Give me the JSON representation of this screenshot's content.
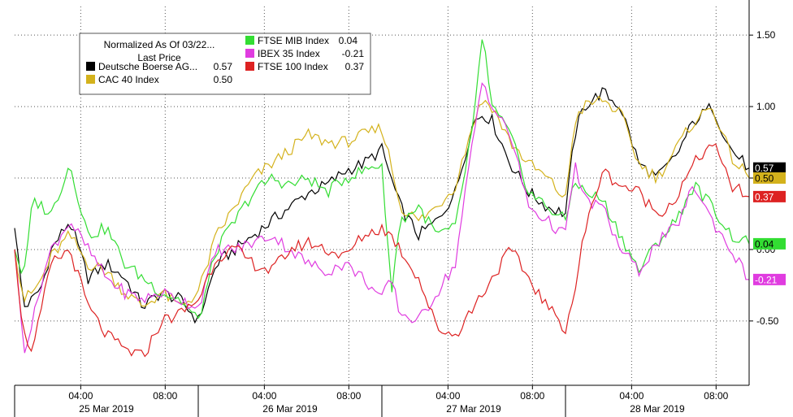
{
  "chart_data": {
    "type": "line",
    "title": "",
    "xlabel": "",
    "ylabel": "",
    "ylim": [
      -0.95,
      1.7
    ],
    "yticks": [
      -0.5,
      0.0,
      0.5,
      1.0,
      1.5
    ],
    "ytick_labels": [
      "-0.50",
      "0.00",
      "0.50",
      "1.00",
      "1.50"
    ],
    "xlim": [
      0,
      4
    ],
    "day_labels": [
      {
        "x": 0.5,
        "label": "25 Mar 2019"
      },
      {
        "x": 1.5,
        "label": "26 Mar 2019"
      },
      {
        "x": 2.5,
        "label": "27 Mar 2019"
      },
      {
        "x": 3.5,
        "label": "28 Mar 2019"
      }
    ],
    "time_ticks": [
      {
        "x": 0.36,
        "label": "04:00"
      },
      {
        "x": 0.82,
        "label": "08:00"
      },
      {
        "x": 1.36,
        "label": "04:00"
      },
      {
        "x": 1.82,
        "label": "08:00"
      },
      {
        "x": 2.36,
        "label": "04:00"
      },
      {
        "x": 2.82,
        "label": "08:00"
      },
      {
        "x": 3.36,
        "label": "04:00"
      },
      {
        "x": 3.82,
        "label": "08:00"
      }
    ],
    "day_boundaries": [
      0,
      1,
      2,
      3
    ],
    "grid": true,
    "legend": {
      "placement": "top-left",
      "header_line1": "Normalized As Of 03/22...",
      "header_line2": "Last Price"
    },
    "series": [
      {
        "name": "Deutsche Boerse AG...",
        "last_label": "0.57",
        "color": "#000000",
        "label_text_color": "#ffffff",
        "x": [
          0,
          0.05,
          0.1,
          0.15,
          0.2,
          0.3,
          0.4,
          0.5,
          0.6,
          0.7,
          0.8,
          0.9,
          1.0,
          1.05,
          1.1,
          1.2,
          1.3,
          1.4,
          1.5,
          1.6,
          1.7,
          1.8,
          1.9,
          2.0,
          2.05,
          2.1,
          2.2,
          2.3,
          2.4,
          2.5,
          2.55,
          2.6,
          2.7,
          2.8,
          2.9,
          3.0,
          3.05,
          3.1,
          3.2,
          3.3,
          3.4,
          3.5,
          3.6,
          3.7,
          3.8,
          3.9,
          4.0
        ],
        "y": [
          0.15,
          -0.4,
          -0.35,
          -0.25,
          0.0,
          0.2,
          -0.2,
          -0.1,
          -0.2,
          -0.4,
          -0.3,
          -0.35,
          -0.5,
          -0.3,
          -0.1,
          0.0,
          0.1,
          0.2,
          0.3,
          0.4,
          0.45,
          0.55,
          0.6,
          0.7,
          0.5,
          0.3,
          0.1,
          0.2,
          0.4,
          0.9,
          0.95,
          0.9,
          0.6,
          0.4,
          0.3,
          0.25,
          0.8,
          1.0,
          1.1,
          1.0,
          0.6,
          0.5,
          0.65,
          0.9,
          1.0,
          0.7,
          0.57
        ]
      },
      {
        "name": "CAC 40 Index",
        "last_label": "0.50",
        "color": "#d4b21c",
        "label_text_color": "#000000",
        "x": [
          0,
          0.05,
          0.1,
          0.15,
          0.2,
          0.3,
          0.4,
          0.5,
          0.6,
          0.7,
          0.8,
          0.9,
          1.0,
          1.05,
          1.1,
          1.2,
          1.3,
          1.4,
          1.5,
          1.6,
          1.7,
          1.8,
          1.9,
          2.0,
          2.05,
          2.1,
          2.2,
          2.3,
          2.4,
          2.5,
          2.55,
          2.6,
          2.7,
          2.8,
          2.9,
          3.0,
          3.05,
          3.1,
          3.2,
          3.3,
          3.4,
          3.5,
          3.6,
          3.7,
          3.8,
          3.9,
          4.0
        ],
        "y": [
          0.0,
          -0.35,
          -0.3,
          -0.2,
          -0.05,
          0.1,
          -0.1,
          -0.15,
          -0.3,
          -0.4,
          -0.3,
          -0.4,
          -0.3,
          -0.1,
          0.1,
          0.3,
          0.5,
          0.6,
          0.7,
          0.8,
          0.75,
          0.75,
          0.8,
          0.85,
          0.6,
          0.3,
          0.2,
          0.3,
          0.45,
          0.9,
          1.05,
          1.0,
          0.75,
          0.6,
          0.5,
          0.35,
          0.9,
          1.0,
          1.05,
          0.95,
          0.6,
          0.5,
          0.7,
          0.9,
          1.0,
          0.65,
          0.5
        ]
      },
      {
        "name": "FTSE MIB Index",
        "last_label": "0.04",
        "color": "#33dd33",
        "label_text_color": "#000000",
        "x": [
          0,
          0.05,
          0.1,
          0.15,
          0.2,
          0.3,
          0.4,
          0.5,
          0.6,
          0.7,
          0.8,
          0.9,
          1.0,
          1.05,
          1.1,
          1.2,
          1.3,
          1.4,
          1.5,
          1.6,
          1.7,
          1.8,
          1.9,
          2.0,
          2.05,
          2.1,
          2.2,
          2.3,
          2.4,
          2.5,
          2.55,
          2.6,
          2.7,
          2.8,
          2.9,
          3.0,
          3.05,
          3.1,
          3.2,
          3.3,
          3.4,
          3.5,
          3.6,
          3.7,
          3.8,
          3.9,
          4.0
        ],
        "y": [
          0.0,
          -0.2,
          0.35,
          0.3,
          0.25,
          0.6,
          0.1,
          0.15,
          -0.1,
          -0.2,
          -0.3,
          -0.35,
          -0.5,
          -0.25,
          0.0,
          0.2,
          0.4,
          0.5,
          0.45,
          0.5,
          0.4,
          0.5,
          0.55,
          0.6,
          -0.3,
          0.2,
          0.3,
          0.1,
          0.15,
          0.9,
          1.5,
          1.0,
          0.8,
          0.4,
          0.3,
          0.2,
          0.5,
          0.4,
          0.35,
          0.1,
          -0.15,
          0.05,
          0.2,
          0.45,
          0.3,
          0.1,
          0.04
        ]
      },
      {
        "name": "IBEX 35 Index",
        "last_label": "-0.21",
        "color": "#e03ce0",
        "label_text_color": "#ffffff",
        "x": [
          0,
          0.05,
          0.1,
          0.15,
          0.2,
          0.3,
          0.4,
          0.5,
          0.6,
          0.7,
          0.8,
          0.9,
          1.0,
          1.05,
          1.1,
          1.2,
          1.3,
          1.4,
          1.5,
          1.6,
          1.7,
          1.8,
          1.9,
          2.0,
          2.05,
          2.1,
          2.2,
          2.3,
          2.4,
          2.5,
          2.55,
          2.6,
          2.7,
          2.8,
          2.9,
          3.0,
          3.05,
          3.1,
          3.2,
          3.3,
          3.4,
          3.5,
          3.6,
          3.7,
          3.8,
          3.9,
          4.0
        ],
        "y": [
          0.0,
          -0.7,
          -0.5,
          -0.2,
          0.0,
          0.2,
          0.0,
          -0.2,
          -0.3,
          -0.35,
          -0.3,
          -0.35,
          -0.4,
          -0.2,
          0.0,
          0.0,
          0.05,
          0.1,
          0.0,
          -0.1,
          -0.15,
          -0.1,
          -0.2,
          -0.35,
          -0.2,
          -0.45,
          -0.5,
          -0.3,
          -0.1,
          0.8,
          1.2,
          1.0,
          0.8,
          0.3,
          0.2,
          0.1,
          0.6,
          0.35,
          0.3,
          0.0,
          -0.15,
          0.05,
          0.15,
          0.45,
          0.2,
          0.0,
          -0.21
        ]
      },
      {
        "name": "FTSE 100 Index",
        "last_label": "0.37",
        "color": "#dd2222",
        "label_text_color": "#ffffff",
        "x": [
          0,
          0.05,
          0.1,
          0.15,
          0.2,
          0.3,
          0.4,
          0.5,
          0.6,
          0.7,
          0.8,
          0.9,
          1.0,
          1.05,
          1.1,
          1.2,
          1.3,
          1.4,
          1.5,
          1.6,
          1.7,
          1.8,
          1.9,
          2.0,
          2.05,
          2.1,
          2.2,
          2.3,
          2.4,
          2.5,
          2.55,
          2.6,
          2.7,
          2.8,
          2.9,
          3.0,
          3.05,
          3.1,
          3.2,
          3.3,
          3.4,
          3.5,
          3.6,
          3.7,
          3.8,
          3.9,
          4.0
        ],
        "y": [
          0.0,
          -0.6,
          -0.7,
          -0.4,
          -0.1,
          0.0,
          -0.4,
          -0.6,
          -0.7,
          -0.75,
          -0.5,
          -0.45,
          -0.35,
          -0.2,
          -0.05,
          0.0,
          -0.1,
          -0.15,
          0.0,
          0.05,
          0.0,
          -0.05,
          0.1,
          0.15,
          0.1,
          0.0,
          -0.2,
          -0.55,
          -0.6,
          -0.4,
          -0.3,
          -0.2,
          0.0,
          -0.2,
          -0.4,
          -0.55,
          -0.3,
          0.1,
          0.55,
          0.45,
          0.4,
          0.25,
          0.35,
          0.6,
          0.75,
          0.45,
          0.37
        ]
      }
    ]
  }
}
